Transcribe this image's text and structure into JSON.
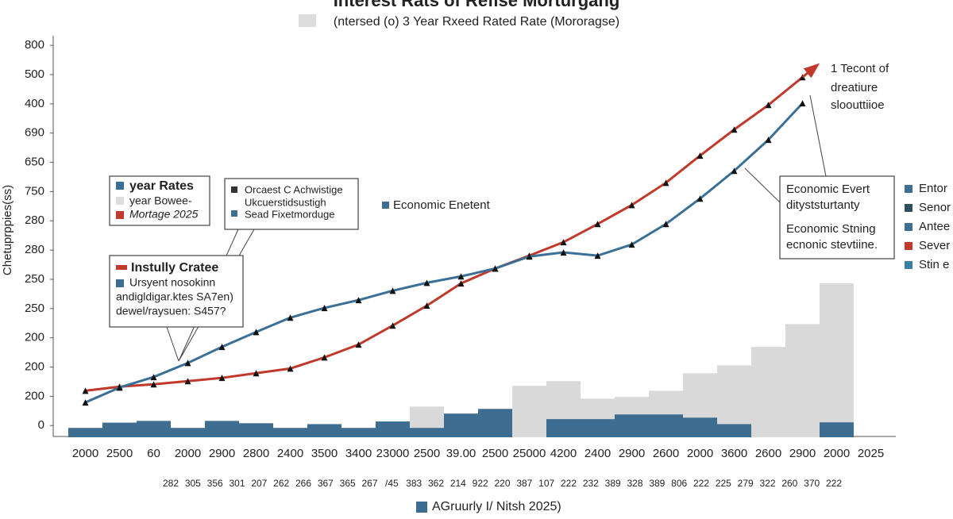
{
  "chart_data": {
    "type": "line",
    "title": "Interest Rats of Refise Morturgang",
    "subtitle": "(ntersed (o) 3 Year Rxeed Rated Rate (Mororagse)",
    "y_label": "Chetuprppies(ss)",
    "x_label": "AGruurly I/ Nitsh 2025)",
    "categories": [
      "2000",
      "2500",
      "60",
      "2000",
      "2900",
      "2800",
      "2400",
      "3500",
      "3400",
      "23000",
      "2500",
      "39.00",
      "2500",
      "25000",
      "4200",
      "2400",
      "2900",
      "2600",
      "2000",
      "3600",
      "2600",
      "2900",
      "2000",
      "2025"
    ],
    "secondary_labels": [
      "282",
      "305",
      "356",
      "301",
      "207",
      "262",
      "266",
      "367",
      "365",
      "267",
      "/45",
      "383",
      "362",
      "214",
      "922",
      "220",
      "387",
      "107",
      "222",
      "232",
      "389",
      "328",
      "389",
      "806",
      "222",
      "225",
      "279",
      "322",
      "260",
      "370",
      "222"
    ],
    "ylim": [
      -0.4,
      13.6
    ],
    "yticks": [
      0,
      {
        "value": 1,
        "label": "200"
      },
      {
        "value": 2,
        "label": "200"
      },
      {
        "value": 3,
        "label": "200"
      },
      {
        "value": 4,
        "label": "250"
      },
      {
        "value": 5,
        "label": "250"
      },
      {
        "value": 6,
        "label": "280"
      },
      {
        "value": 7,
        "label": "280"
      },
      {
        "value": 8,
        "label": "750"
      },
      {
        "value": 9,
        "label": "650"
      },
      {
        "value": 10,
        "label": "690"
      },
      {
        "value": 11,
        "label": "400"
      },
      {
        "value": 12,
        "label": "500"
      },
      {
        "value": 13,
        "label": "800"
      }
    ],
    "grid": false,
    "series": [
      {
        "name": "Sead Fixetmorduge",
        "type": "bar",
        "color": "#d9d9d9",
        "values": [
          null,
          null,
          null,
          null,
          null,
          null,
          null,
          null,
          null,
          null,
          0.65,
          null,
          null,
          1.36,
          1.52,
          0.92,
          0.98,
          1.19,
          1.79,
          2.06,
          2.69,
          3.47,
          4.86,
          null
        ]
      },
      {
        "name": "Economic Enetent",
        "type": "bar",
        "color": "#3d6e91",
        "values": [
          -0.08,
          0.1,
          0.16,
          -0.08,
          0.16,
          0.08,
          -0.08,
          0.05,
          -0.08,
          0.14,
          -0.08,
          0.41,
          0.57,
          null,
          0.22,
          0.22,
          0.38,
          0.38,
          0.27,
          0.05,
          null,
          null,
          0.11,
          null
        ]
      },
      {
        "name": "Mortage 2025",
        "type": "line",
        "color": "#c0392b",
        "values": [
          1.19,
          1.33,
          1.41,
          1.52,
          1.63,
          1.79,
          1.95,
          2.33,
          2.77,
          3.42,
          4.1,
          4.86,
          5.37,
          5.81,
          6.27,
          6.89,
          7.54,
          8.3,
          9.23,
          10.12,
          10.96,
          11.91,
          null,
          null
        ]
      },
      {
        "name": "year Rates",
        "type": "line",
        "color": "#3a6f96",
        "values": [
          0.79,
          1.3,
          1.66,
          2.14,
          2.69,
          3.2,
          3.69,
          4.02,
          4.29,
          4.61,
          4.88,
          5.1,
          5.37,
          5.78,
          5.92,
          5.81,
          6.19,
          6.89,
          7.76,
          8.71,
          9.77,
          11.02,
          null,
          null
        ]
      }
    ],
    "legend_box_1": [
      "year Bowee-"
    ],
    "legend_box_2": [
      "Orcaest C Achwistige",
      "Ukcuerstidsustigh"
    ],
    "legend_box_3": [
      "Instully Cratee",
      "Ursyent nosokinn",
      "andigldigar.ktes SA7en)",
      "dewel/raysuen: S457?"
    ],
    "note_right": [
      "1 Tecont of",
      "dreatiure",
      "sloouttiioe"
    ],
    "event_box": [
      "Economic Evert",
      "dityststurtanty",
      "Economic Stning",
      "ecnonic stevtiine."
    ],
    "right_legend": [
      {
        "name": "Entor",
        "color": "#3d6e91"
      },
      {
        "name": "Senor",
        "color": "#2d4f5a"
      },
      {
        "name": "Antee",
        "color": "#3d6e91"
      },
      {
        "name": "Sever",
        "color": "#c0392b"
      },
      {
        "name": "Stin e",
        "color": "#3a7fa0"
      }
    ]
  }
}
